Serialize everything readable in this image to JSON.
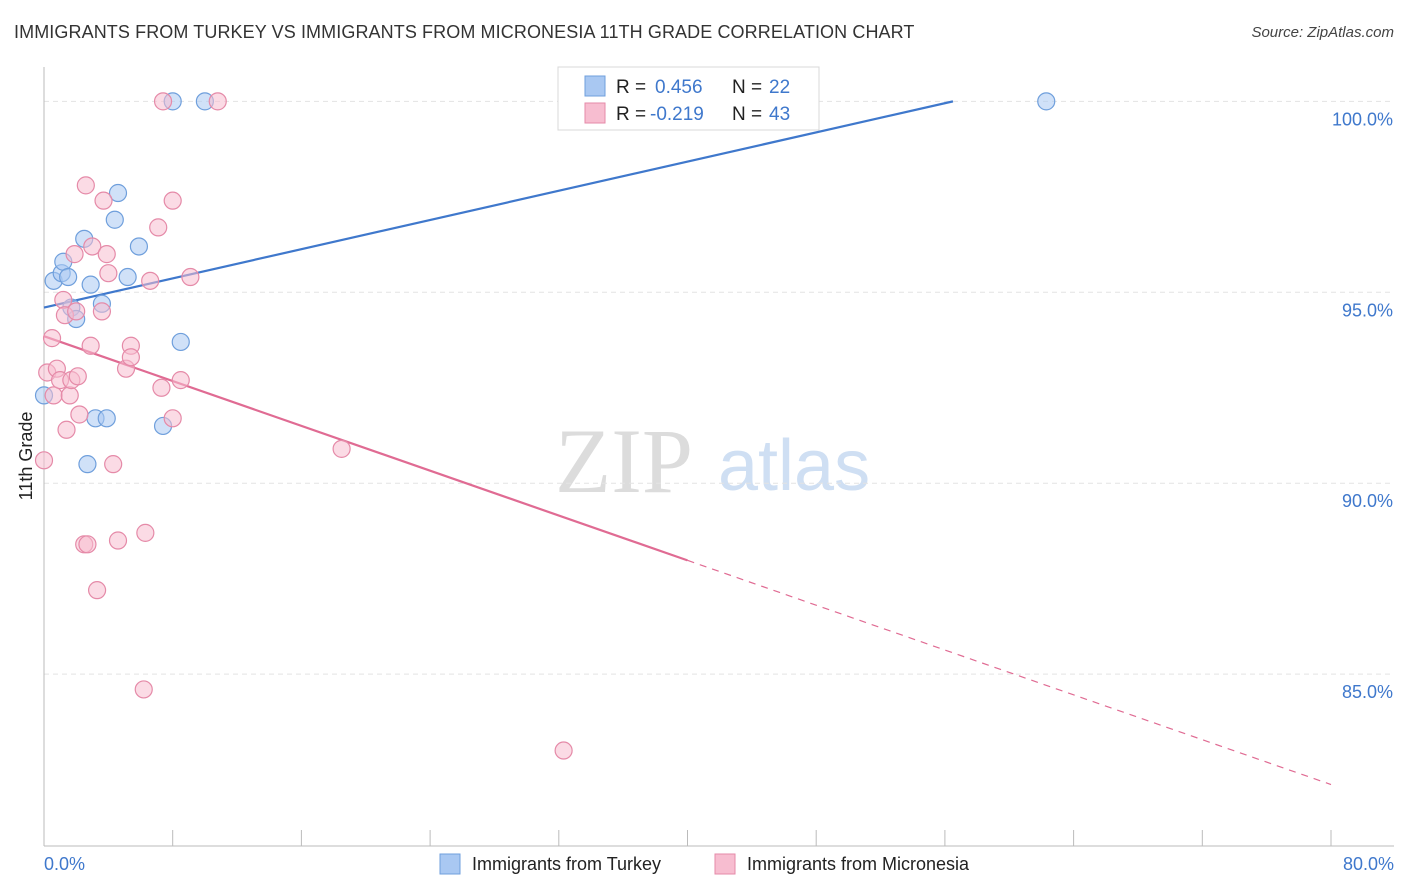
{
  "title": "IMMIGRANTS FROM TURKEY VS IMMIGRANTS FROM MICRONESIA 11TH GRADE CORRELATION CHART",
  "source": "Source: ZipAtlas.com",
  "watermark": {
    "zip": "ZIP",
    "atlas": "atlas"
  },
  "colors": {
    "turkey_fill": "#a9c8f2",
    "turkey_stroke": "#6f9fdc",
    "turkey_line": "#3f78cc",
    "micronesia_fill": "#f7bdd0",
    "micronesia_stroke": "#e58aa8",
    "micronesia_line": "#e06b93",
    "value_text": "#3f78cc"
  },
  "chart_data": {
    "type": "scatter",
    "xlabel": "",
    "ylabel": "11th Grade",
    "xlim": [
      0,
      80
    ],
    "ylim": [
      80.5,
      100.9
    ],
    "x_tick_labels": [
      "0.0%",
      "80.0%"
    ],
    "y_ticks": [
      85,
      90,
      95,
      100
    ],
    "y_tick_labels": [
      "85.0%",
      "90.0%",
      "95.0%",
      "100.0%"
    ],
    "legend": {
      "position": "top-center",
      "entries": [
        {
          "r_label": "R =",
          "r_value": "0.456",
          "n_label": "N =",
          "n_value": "22"
        },
        {
          "r_label": "R =",
          "r_value": "-0.219",
          "n_label": "N =",
          "n_value": "43"
        }
      ]
    },
    "series": [
      {
        "name": "Immigrants from Turkey",
        "points": [
          [
            0.0,
            92.3
          ],
          [
            0.6,
            95.3
          ],
          [
            1.1,
            95.5
          ],
          [
            1.2,
            95.8
          ],
          [
            1.5,
            95.4
          ],
          [
            1.7,
            94.6
          ],
          [
            2.0,
            94.3
          ],
          [
            2.5,
            96.4
          ],
          [
            2.7,
            90.5
          ],
          [
            2.9,
            95.2
          ],
          [
            3.2,
            91.7
          ],
          [
            3.6,
            94.7
          ],
          [
            3.9,
            91.7
          ],
          [
            4.4,
            96.9
          ],
          [
            4.6,
            97.6
          ],
          [
            5.2,
            95.4
          ],
          [
            5.9,
            96.2
          ],
          [
            7.4,
            91.5
          ],
          [
            8.0,
            100.0
          ],
          [
            8.5,
            93.7
          ],
          [
            10.0,
            100.0
          ],
          [
            62.3,
            100.0
          ]
        ],
        "trend": {
          "x": [
            0,
            56.5
          ],
          "y": [
            94.6,
            100.0
          ],
          "dashed_to_x": null
        }
      },
      {
        "name": "Immigrants from Micronesia",
        "points": [
          [
            0.0,
            90.6
          ],
          [
            0.2,
            92.9
          ],
          [
            0.5,
            93.8
          ],
          [
            0.6,
            92.3
          ],
          [
            0.8,
            93.0
          ],
          [
            1.0,
            92.7
          ],
          [
            1.2,
            94.8
          ],
          [
            1.3,
            94.4
          ],
          [
            1.4,
            91.4
          ],
          [
            1.6,
            92.3
          ],
          [
            1.7,
            92.7
          ],
          [
            1.9,
            96.0
          ],
          [
            2.0,
            94.5
          ],
          [
            2.1,
            92.8
          ],
          [
            2.2,
            91.8
          ],
          [
            2.5,
            88.4
          ],
          [
            2.6,
            97.8
          ],
          [
            2.7,
            88.4
          ],
          [
            2.9,
            93.6
          ],
          [
            3.0,
            96.2
          ],
          [
            3.3,
            87.2
          ],
          [
            3.6,
            94.5
          ],
          [
            3.7,
            97.4
          ],
          [
            3.9,
            96.0
          ],
          [
            4.0,
            95.5
          ],
          [
            4.3,
            90.5
          ],
          [
            4.6,
            88.5
          ],
          [
            5.1,
            93.0
          ],
          [
            5.4,
            93.6
          ],
          [
            5.4,
            93.3
          ],
          [
            6.2,
            84.6
          ],
          [
            6.3,
            88.7
          ],
          [
            6.6,
            95.3
          ],
          [
            7.1,
            96.7
          ],
          [
            7.3,
            92.5
          ],
          [
            7.4,
            100.0
          ],
          [
            8.0,
            91.7
          ],
          [
            8.0,
            97.4
          ],
          [
            8.5,
            92.7
          ],
          [
            9.1,
            95.4
          ],
          [
            10.8,
            100.0
          ],
          [
            18.5,
            90.9
          ],
          [
            32.3,
            83.0
          ]
        ],
        "trend": {
          "x": [
            0,
            40
          ],
          "y": [
            93.85,
            87.98
          ],
          "dashed_to_x": 80
        }
      }
    ]
  }
}
